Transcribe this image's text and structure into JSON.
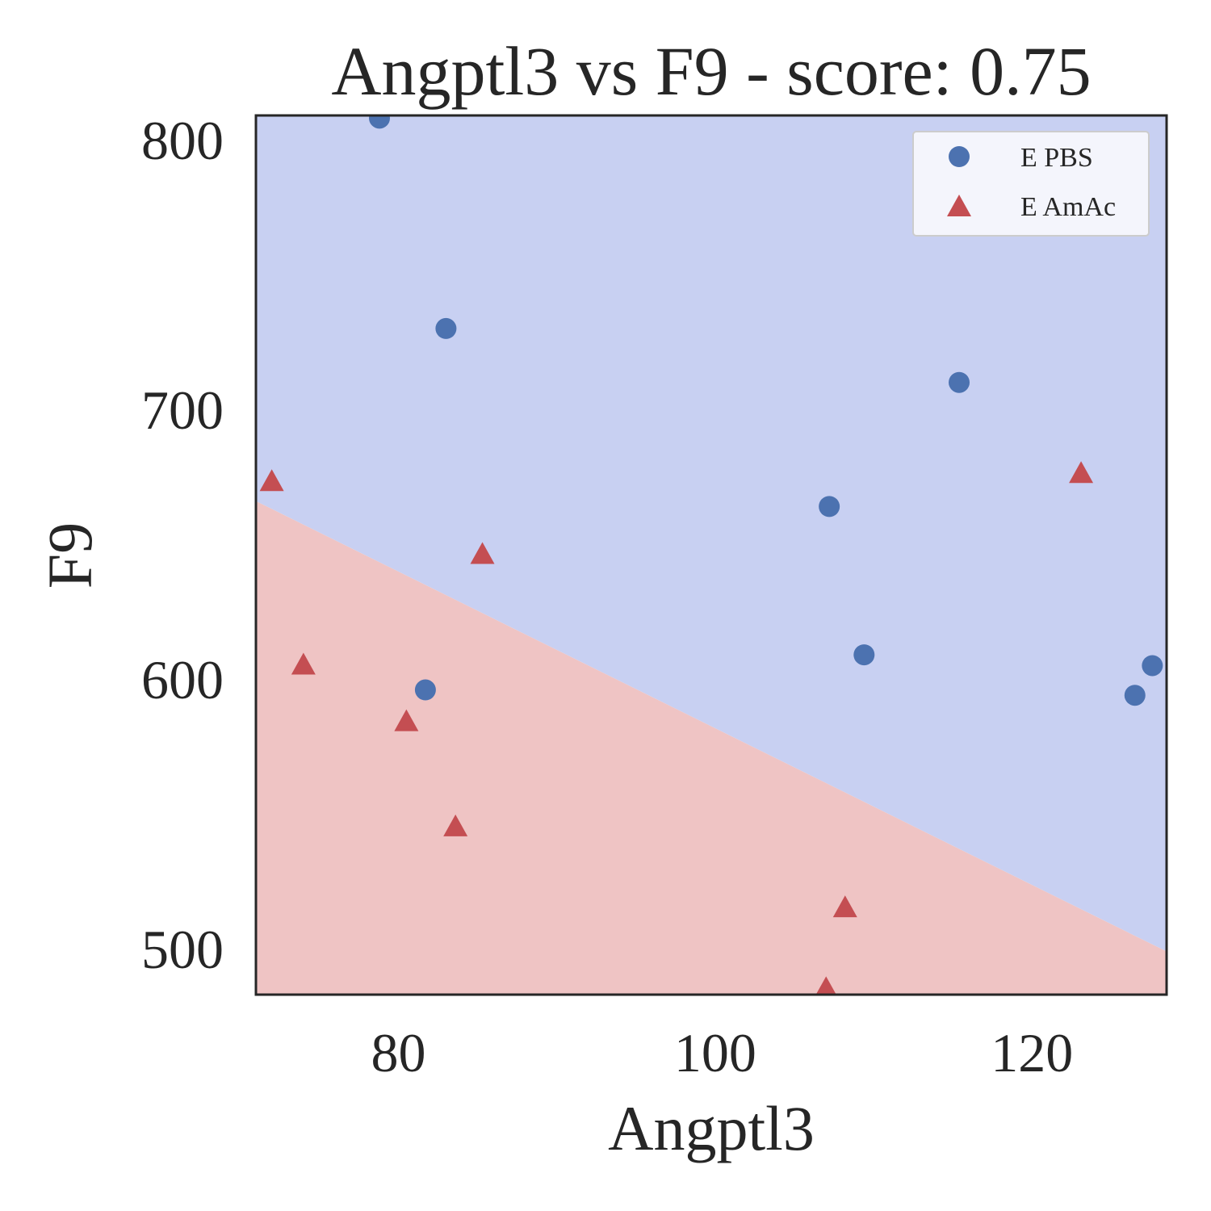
{
  "chart_data": {
    "type": "scatter",
    "title": "Angptl3 vs F9 - score: 0.75",
    "xlabel": "Angptl3",
    "ylabel": "F9",
    "xlim": [
      71,
      128.5
    ],
    "ylim": [
      483,
      809
    ],
    "xticks": [
      80,
      100,
      120
    ],
    "yticks": [
      500,
      600,
      700,
      800
    ],
    "grid": false,
    "legend_position": "top-right",
    "decision_boundary": {
      "x": [
        71,
        128.5
      ],
      "y": [
        666,
        499
      ],
      "upper_region_class": "E PBS",
      "lower_region_class": "E AmAc",
      "upper_color": "#c8d0f2",
      "lower_color": "#efc4c4"
    },
    "series": [
      {
        "name": "E PBS",
        "marker": "circle",
        "color": "#4c72b0",
        "points": [
          {
            "x": 78.8,
            "y": 808
          },
          {
            "x": 83.0,
            "y": 730
          },
          {
            "x": 81.7,
            "y": 596
          },
          {
            "x": 107.2,
            "y": 664
          },
          {
            "x": 109.4,
            "y": 609
          },
          {
            "x": 115.4,
            "y": 710
          },
          {
            "x": 126.5,
            "y": 594
          },
          {
            "x": 127.6,
            "y": 605
          }
        ]
      },
      {
        "name": "E AmAc",
        "marker": "triangle",
        "color": "#c44e52",
        "points": [
          {
            "x": 72.0,
            "y": 673
          },
          {
            "x": 74.0,
            "y": 605
          },
          {
            "x": 80.5,
            "y": 584
          },
          {
            "x": 83.6,
            "y": 545
          },
          {
            "x": 85.3,
            "y": 646
          },
          {
            "x": 107.0,
            "y": 485
          },
          {
            "x": 108.2,
            "y": 515
          },
          {
            "x": 123.1,
            "y": 676
          }
        ]
      }
    ]
  }
}
